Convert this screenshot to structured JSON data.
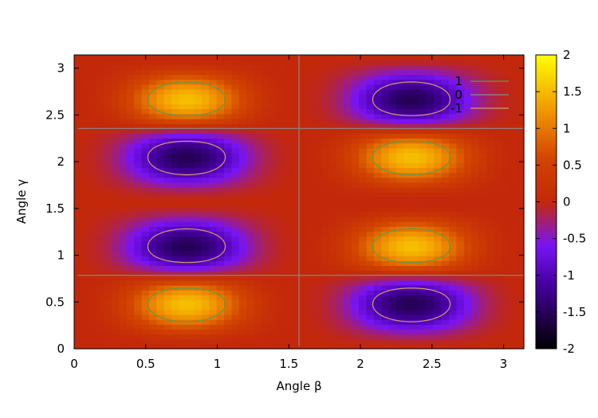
{
  "chart_data": {
    "type": "heatmap",
    "title": "",
    "xlabel": "Angle β",
    "ylabel": "Angle γ",
    "xlim": [
      0,
      3.1416
    ],
    "ylim": [
      0,
      3.1416
    ],
    "x_ticks": [
      {
        "value": 0,
        "label": "0"
      },
      {
        "value": 0.5,
        "label": "0.5"
      },
      {
        "value": 1,
        "label": "1"
      },
      {
        "value": 1.5,
        "label": "1.5"
      },
      {
        "value": 2,
        "label": "2"
      },
      {
        "value": 2.5,
        "label": "2.5"
      },
      {
        "value": 3,
        "label": "3"
      }
    ],
    "y_ticks": [
      {
        "value": 0,
        "label": "0"
      },
      {
        "value": 0.5,
        "label": "0.5"
      },
      {
        "value": 1,
        "label": "1"
      },
      {
        "value": 1.5,
        "label": "1.5"
      },
      {
        "value": 2,
        "label": "2"
      },
      {
        "value": 2.5,
        "label": "2.5"
      },
      {
        "value": 3,
        "label": "3"
      }
    ],
    "colorbar": {
      "range": [
        -2,
        2
      ],
      "ticks": [
        {
          "value": 2,
          "label": "2"
        },
        {
          "value": 1.5,
          "label": "1.5"
        },
        {
          "value": 1,
          "label": "1"
        },
        {
          "value": 0.5,
          "label": "0.5"
        },
        {
          "value": 0,
          "label": "0"
        },
        {
          "value": -0.5,
          "label": "-0.5"
        },
        {
          "value": -1,
          "label": "-1"
        },
        {
          "value": -1.5,
          "label": "-1.5"
        },
        {
          "value": -2,
          "label": "-2"
        }
      ]
    },
    "grid_resolution": 60,
    "field_model": "f(β,γ) = 2·sin(2γ)·sin(4γ)·sin(2β)·(1.2 − cos(4β))/2.2",
    "contours": [
      {
        "level": 1,
        "label": "1",
        "color": "#5e9a4c"
      },
      {
        "level": 0,
        "label": "0",
        "color": "#8a8a8a"
      },
      {
        "level": -1,
        "label": "-1",
        "color": "#d29a6a"
      }
    ],
    "legend_position": "top-right",
    "colormap": "black-purple-red-orange-yellow"
  }
}
